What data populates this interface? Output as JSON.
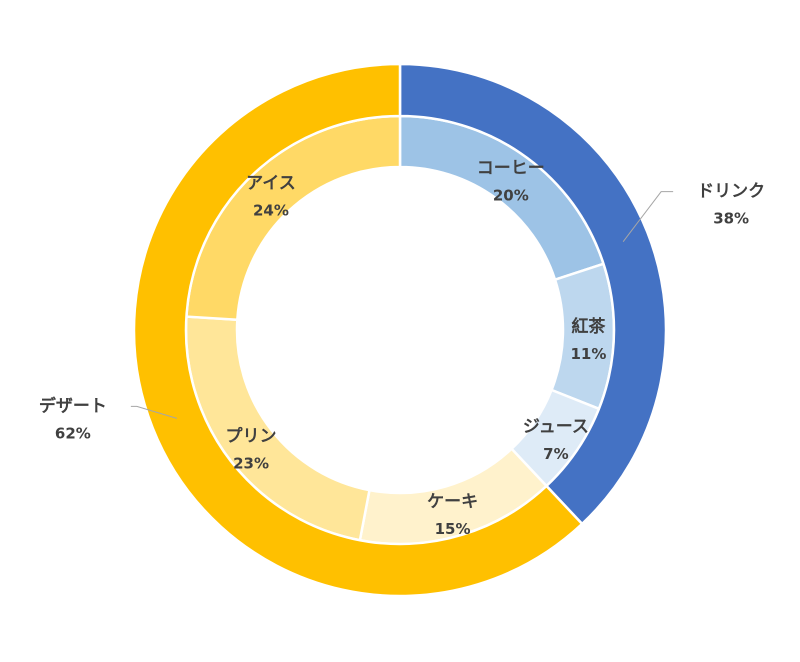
{
  "chart_data": {
    "type": "donut",
    "outer": [
      {
        "name": "ドリンク",
        "value": 38,
        "label": "38%",
        "color": "#4472C4"
      },
      {
        "name": "デザート",
        "value": 62,
        "label": "62%",
        "color": "#FFC000"
      }
    ],
    "inner": [
      {
        "name": "コーヒー",
        "value": 20,
        "label": "20%",
        "color": "#9DC3E6"
      },
      {
        "name": "紅茶",
        "value": 11,
        "label": "11%",
        "color": "#BDD7EE"
      },
      {
        "name": "ジュース",
        "value": 7,
        "label": "7%",
        "color": "#DEEBF7"
      },
      {
        "name": "ケーキ",
        "value": 15,
        "label": "15%",
        "color": "#FFF2CC"
      },
      {
        "name": "プリン",
        "value": 23,
        "label": "23%",
        "color": "#FFE699"
      },
      {
        "name": "アイス",
        "value": 24,
        "label": "24%",
        "color": "#FFD966"
      }
    ]
  }
}
